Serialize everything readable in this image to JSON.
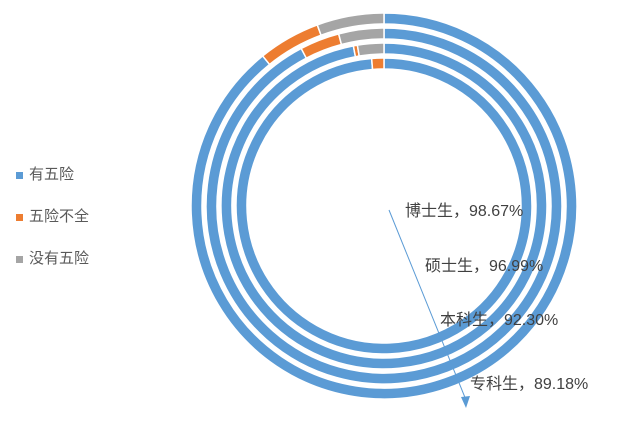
{
  "chart_data": {
    "type": "doughnut",
    "title": "",
    "legend": {
      "position": "left",
      "entries": [
        "有五险",
        "五险不全",
        "没有五险"
      ]
    },
    "series_colors": [
      "#5b9bd5",
      "#ed7d31",
      "#a5a5a5"
    ],
    "rings_outer_to_inner": [
      {
        "name": "专科生",
        "values": [
          89.18,
          5.2,
          5.62
        ],
        "label": "专科生，89.18%"
      },
      {
        "name": "本科生",
        "values": [
          92.3,
          3.6,
          4.1
        ],
        "label": "本科生，92.30%"
      },
      {
        "name": "硕士生",
        "values": [
          96.99,
          0.4,
          2.61
        ],
        "label": "硕士生，96.99%"
      },
      {
        "name": "博士生",
        "values": [
          98.67,
          1.33,
          0.0
        ],
        "label": "博士生，98.67%"
      }
    ]
  }
}
